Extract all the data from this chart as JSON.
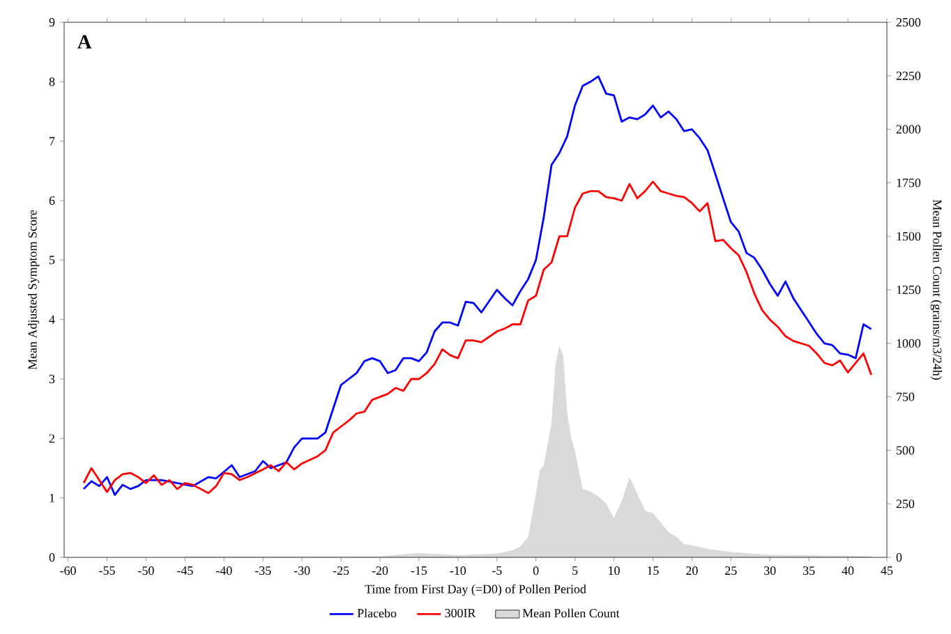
{
  "chart_data": {
    "type": "line",
    "title": "A",
    "xlabel": "Time from First Day (=D0) of Pollen Period",
    "ylabel": "Mean Adjusted Symptom Score",
    "y2label": "Mean Pollen Count (grains/m3/24h)",
    "xlim": [
      -60.5,
      45
    ],
    "xticks": [
      -60,
      -55,
      -50,
      -45,
      -40,
      -35,
      -30,
      -25,
      -20,
      -15,
      -10,
      -5,
      0,
      5,
      10,
      15,
      20,
      25,
      30,
      35,
      40,
      45
    ],
    "ylim": [
      0,
      9
    ],
    "yticks": [
      0,
      1,
      2,
      3,
      4,
      5,
      6,
      7,
      8,
      9
    ],
    "y2lim": [
      0,
      2500
    ],
    "y2ticks": [
      0,
      250,
      500,
      750,
      1000,
      1250,
      1500,
      1750,
      2000,
      2250,
      2500
    ],
    "legend": "bottom",
    "grid": false,
    "marker": "none",
    "line_style": "solid",
    "series": [
      {
        "name": "Mean Pollen Count",
        "type": "area",
        "axis": "y2",
        "color": "#d9d9d9",
        "x": [
          -45,
          -20,
          -15,
          -10,
          -5,
          -3,
          -2,
          -1,
          0,
          0.5,
          1,
          2,
          2.5,
          3,
          3.5,
          4,
          4.5,
          5,
          6,
          7,
          8,
          9,
          10,
          11,
          12,
          13,
          14,
          15,
          16,
          17,
          18,
          19,
          20,
          22,
          25,
          30,
          40,
          43
        ],
        "values": [
          5,
          5,
          20,
          10,
          18,
          33,
          51,
          96,
          297,
          408,
          430,
          631,
          900,
          988,
          943,
          676,
          564,
          497,
          319,
          308,
          285,
          252,
          185,
          263,
          375,
          297,
          218,
          207,
          163,
          118,
          96,
          62,
          56,
          40,
          25,
          11,
          7,
          5
        ]
      },
      {
        "name": "Placebo",
        "color": "#0000ff",
        "x": [
          -58,
          -57,
          -56,
          -55,
          -54,
          -53,
          -52,
          -51,
          -50,
          -49,
          -48,
          -46,
          -44,
          -42,
          -41,
          -39,
          -38,
          -36,
          -35,
          -34,
          -33,
          -32,
          -31,
          -30,
          -28,
          -27,
          -26,
          -25,
          -24,
          -23,
          -22,
          -21,
          -20,
          -19,
          -18,
          -17,
          -16,
          -15,
          -14,
          -13,
          -12,
          -11,
          -10,
          -9,
          -8,
          -7,
          -5,
          -4,
          -3,
          -2,
          -1,
          0,
          1,
          2,
          3,
          4,
          5,
          6,
          7,
          8,
          9,
          10,
          11,
          12,
          13,
          14,
          15,
          16,
          17,
          18,
          19,
          20,
          21,
          22,
          23,
          24,
          25,
          26,
          27,
          28,
          29,
          30,
          31,
          32,
          33,
          34,
          35,
          36,
          37,
          38,
          39,
          40,
          41,
          42,
          43
        ],
        "values": [
          1.15,
          1.28,
          1.2,
          1.35,
          1.05,
          1.22,
          1.15,
          1.2,
          1.3,
          1.3,
          1.3,
          1.25,
          1.2,
          1.35,
          1.33,
          1.55,
          1.35,
          1.45,
          1.62,
          1.5,
          1.55,
          1.6,
          1.85,
          2.0,
          2.0,
          2.1,
          2.5,
          2.9,
          3.0,
          3.1,
          3.3,
          3.35,
          3.3,
          3.1,
          3.15,
          3.35,
          3.35,
          3.3,
          3.45,
          3.8,
          3.95,
          3.95,
          3.9,
          4.3,
          4.28,
          4.12,
          4.5,
          4.36,
          4.24,
          4.48,
          4.68,
          5.0,
          5.72,
          6.6,
          6.8,
          7.08,
          7.6,
          7.93,
          8.0,
          8.09,
          7.8,
          7.77,
          7.33,
          7.4,
          7.37,
          7.45,
          7.6,
          7.4,
          7.5,
          7.37,
          7.17,
          7.2,
          7.05,
          6.85,
          6.45,
          6.04,
          5.64,
          5.48,
          5.12,
          5.04,
          4.84,
          4.6,
          4.4,
          4.64,
          4.36,
          4.16,
          3.96,
          3.76,
          3.6,
          3.57,
          3.43,
          3.41,
          3.35,
          3.92,
          3.84
        ]
      },
      {
        "name": "300IR",
        "color": "#ff0000",
        "x": [
          -58,
          -57,
          -56,
          -55,
          -54,
          -53,
          -52,
          -51,
          -50,
          -49,
          -48,
          -47,
          -46,
          -45,
          -44,
          -42,
          -41,
          -40,
          -39,
          -38,
          -37,
          -35,
          -34,
          -33,
          -32,
          -31,
          -30,
          -28,
          -27,
          -26,
          -25,
          -24,
          -23,
          -22,
          -21,
          -20,
          -19,
          -18,
          -17,
          -16,
          -15,
          -14,
          -13,
          -12,
          -11,
          -10,
          -9,
          -8,
          -7,
          -5,
          -4,
          -3,
          -2,
          -1,
          0,
          1,
          2,
          3,
          4,
          5,
          6,
          7,
          8,
          9,
          10,
          11,
          12,
          13,
          14,
          15,
          16,
          17,
          18,
          19,
          20,
          21,
          22,
          23,
          24,
          25,
          26,
          27,
          28,
          29,
          30,
          31,
          32,
          33,
          34,
          35,
          36,
          37,
          38,
          39,
          40,
          41,
          42,
          43
        ],
        "values": [
          1.25,
          1.5,
          1.3,
          1.1,
          1.3,
          1.4,
          1.42,
          1.35,
          1.25,
          1.38,
          1.22,
          1.3,
          1.15,
          1.25,
          1.22,
          1.08,
          1.2,
          1.42,
          1.4,
          1.3,
          1.35,
          1.48,
          1.55,
          1.45,
          1.6,
          1.48,
          1.58,
          1.7,
          1.8,
          2.1,
          2.2,
          2.3,
          2.42,
          2.45,
          2.65,
          2.7,
          2.75,
          2.85,
          2.8,
          3.0,
          3.0,
          3.1,
          3.25,
          3.5,
          3.4,
          3.35,
          3.65,
          3.65,
          3.62,
          3.8,
          3.85,
          3.92,
          3.92,
          4.32,
          4.4,
          4.84,
          4.96,
          5.4,
          5.4,
          5.88,
          6.12,
          6.16,
          6.16,
          6.06,
          6.04,
          6.0,
          6.28,
          6.04,
          6.16,
          6.32,
          6.16,
          6.12,
          6.08,
          6.06,
          5.96,
          5.82,
          5.96,
          5.32,
          5.34,
          5.2,
          5.08,
          4.8,
          4.44,
          4.16,
          4.0,
          3.88,
          3.72,
          3.64,
          3.6,
          3.56,
          3.43,
          3.27,
          3.23,
          3.31,
          3.11,
          3.27,
          3.43,
          3.07
        ]
      }
    ]
  }
}
